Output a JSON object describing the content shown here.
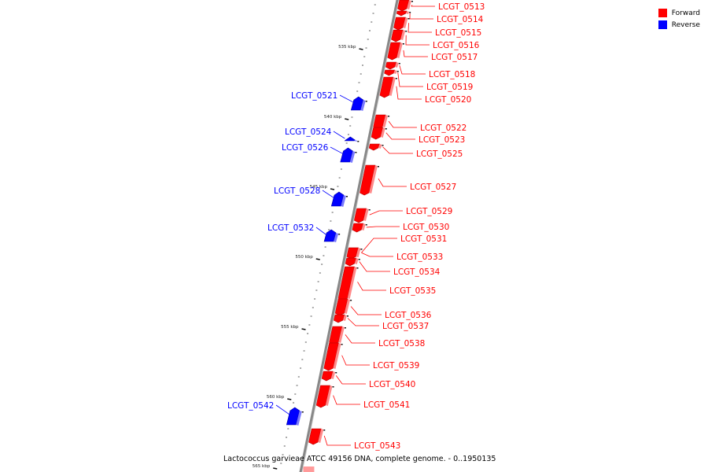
{
  "caption": "Lactococcus garvieae ATCC 49156 DNA, complete genome. - 0..1950135",
  "legend": [
    {
      "label": "Forward",
      "color": "#ff0000"
    },
    {
      "label": "Reverse",
      "color": "#0000ff"
    }
  ],
  "colors": {
    "forward": "#ff0000",
    "reverse": "#0000ff",
    "backbone": "#888888"
  },
  "ticks": [
    "535 kbp",
    "540 kbp",
    "545 kbp",
    "550 kbp",
    "555 kbp",
    "560 kbp",
    "565 kbp"
  ],
  "genes": [
    {
      "name": "LCGT_0513",
      "strand": "forward"
    },
    {
      "name": "LCGT_0514",
      "strand": "forward"
    },
    {
      "name": "LCGT_0515",
      "strand": "forward"
    },
    {
      "name": "LCGT_0516",
      "strand": "forward"
    },
    {
      "name": "LCGT_0517",
      "strand": "forward"
    },
    {
      "name": "LCGT_0518",
      "strand": "forward"
    },
    {
      "name": "LCGT_0519",
      "strand": "forward"
    },
    {
      "name": "LCGT_0520",
      "strand": "forward"
    },
    {
      "name": "LCGT_0521",
      "strand": "reverse"
    },
    {
      "name": "LCGT_0522",
      "strand": "forward"
    },
    {
      "name": "LCGT_0523",
      "strand": "forward"
    },
    {
      "name": "LCGT_0524",
      "strand": "reverse"
    },
    {
      "name": "LCGT_0525",
      "strand": "forward"
    },
    {
      "name": "LCGT_0526",
      "strand": "reverse"
    },
    {
      "name": "LCGT_0527",
      "strand": "forward"
    },
    {
      "name": "LCGT_0528",
      "strand": "reverse"
    },
    {
      "name": "LCGT_0529",
      "strand": "forward"
    },
    {
      "name": "LCGT_0530",
      "strand": "forward"
    },
    {
      "name": "LCGT_0531",
      "strand": "forward"
    },
    {
      "name": "LCGT_0532",
      "strand": "reverse"
    },
    {
      "name": "LCGT_0533",
      "strand": "forward"
    },
    {
      "name": "LCGT_0534",
      "strand": "forward"
    },
    {
      "name": "LCGT_0535",
      "strand": "forward"
    },
    {
      "name": "LCGT_0536",
      "strand": "forward"
    },
    {
      "name": "LCGT_0537",
      "strand": "forward"
    },
    {
      "name": "LCGT_0538",
      "strand": "forward"
    },
    {
      "name": "LCGT_0539",
      "strand": "forward"
    },
    {
      "name": "LCGT_0540",
      "strand": "forward"
    },
    {
      "name": "LCGT_0541",
      "strand": "forward"
    },
    {
      "name": "LCGT_0542",
      "strand": "reverse"
    },
    {
      "name": "LCGT_0543",
      "strand": "forward"
    }
  ]
}
